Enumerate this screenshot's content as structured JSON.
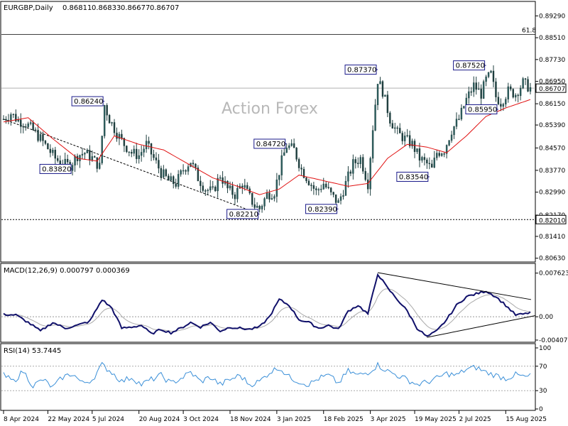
{
  "chart_data": {
    "type": "candlestick",
    "main": {
      "symbol_header": "EURGBP,Daily",
      "ohlc_header": [
        "0.86811",
        "0.86833",
        "0.86677",
        "0.86707"
      ],
      "current_price": "0.86707",
      "watermark": "Action Forex",
      "ylim": [
        0.8052,
        0.8935
      ],
      "y_ticks": [
        "0.89290",
        "0.88510",
        "0.87730",
        "0.86950",
        "0.86150",
        "0.85390",
        "0.84570",
        "0.83770",
        "0.82990",
        "0.82170",
        "0.81410",
        "0.80630"
      ],
      "fib_level": {
        "label": "61.8",
        "value": 0.8863
      },
      "support_level": {
        "label": "0.82010",
        "value": 0.8201
      },
      "annotations": [
        {
          "label": "0.86240",
          "value": 0.8624,
          "x": 41
        },
        {
          "label": "0.83820",
          "value": 0.8382,
          "x": 28
        },
        {
          "label": "0.84720",
          "value": 0.8472,
          "x": 115
        },
        {
          "label": "0.82210",
          "value": 0.8221,
          "x": 104
        },
        {
          "label": "0.87370",
          "value": 0.8737,
          "x": 152
        },
        {
          "label": "0.82390",
          "value": 0.8239,
          "x": 136
        },
        {
          "label": "0.83540",
          "value": 0.8354,
          "x": 173
        },
        {
          "label": "0.87520",
          "value": 0.8752,
          "x": 196
        },
        {
          "label": "0.85950",
          "value": 0.8595,
          "x": 201
        }
      ],
      "sma_label": "moving average",
      "trendline": {
        "from": {
          "x": 0,
          "value": 0.856
        },
        "to": {
          "x": 104,
          "value": 0.8221
        }
      }
    },
    "macd": {
      "header": "MACD(12,26,9) 0.000797 0.000369",
      "ylim": [
        -0.0042,
        0.0082
      ],
      "y_ticks": [
        "0.007623",
        "0.00",
        "-0.004073"
      ]
    },
    "rsi": {
      "header": "RSI(14) 53.7445",
      "ylim": [
        0,
        100
      ],
      "y_ticks": [
        "100",
        "70",
        "30",
        "0"
      ],
      "levels": [
        70,
        30
      ]
    },
    "x_ticks": [
      {
        "label": "8 Apr 2024",
        "x": 0
      },
      {
        "label": "22 May 2024",
        "x": 18
      },
      {
        "label": "5 Jul 2024",
        "x": 36
      },
      {
        "label": "20 Aug 2024",
        "x": 55
      },
      {
        "label": "3 Oct 2024",
        "x": 73
      },
      {
        "label": "18 Nov 2024",
        "x": 92
      },
      {
        "label": "3 Jan 2025",
        "x": 111
      },
      {
        "label": "18 Feb 2025",
        "x": 130
      },
      {
        "label": "3 Apr 2025",
        "x": 149
      },
      {
        "label": "19 May 2025",
        "x": 167
      },
      {
        "label": "2 Jul 2025",
        "x": 185
      },
      {
        "label": "15 Aug 2025",
        "x": 204
      }
    ],
    "close_anchors": [
      [
        0,
        0.856
      ],
      [
        3,
        0.858
      ],
      [
        6,
        0.8555
      ],
      [
        9,
        0.8545
      ],
      [
        12,
        0.852
      ],
      [
        15,
        0.849
      ],
      [
        18,
        0.8455
      ],
      [
        21,
        0.842
      ],
      [
        24,
        0.84
      ],
      [
        27,
        0.8395
      ],
      [
        30,
        0.843
      ],
      [
        33,
        0.844
      ],
      [
        36,
        0.842
      ],
      [
        39,
        0.839
      ],
      [
        41,
        0.861
      ],
      [
        43,
        0.856
      ],
      [
        46,
        0.851
      ],
      [
        49,
        0.847
      ],
      [
        52,
        0.844
      ],
      [
        55,
        0.843
      ],
      [
        58,
        0.847
      ],
      [
        61,
        0.842
      ],
      [
        64,
        0.837
      ],
      [
        67,
        0.834
      ],
      [
        70,
        0.833
      ],
      [
        73,
        0.838
      ],
      [
        76,
        0.841
      ],
      [
        79,
        0.835
      ],
      [
        82,
        0.831
      ],
      [
        85,
        0.83
      ],
      [
        88,
        0.836
      ],
      [
        91,
        0.831
      ],
      [
        94,
        0.829
      ],
      [
        97,
        0.833
      ],
      [
        100,
        0.828
      ],
      [
        102,
        0.825
      ],
      [
        104,
        0.824
      ],
      [
        107,
        0.829
      ],
      [
        110,
        0.83
      ],
      [
        113,
        0.841
      ],
      [
        115,
        0.8465
      ],
      [
        118,
        0.845
      ],
      [
        121,
        0.838
      ],
      [
        124,
        0.834
      ],
      [
        127,
        0.83
      ],
      [
        130,
        0.833
      ],
      [
        133,
        0.829
      ],
      [
        136,
        0.826
      ],
      [
        139,
        0.833
      ],
      [
        142,
        0.84
      ],
      [
        145,
        0.842
      ],
      [
        148,
        0.833
      ],
      [
        150,
        0.853
      ],
      [
        152,
        0.87
      ],
      [
        154,
        0.866
      ],
      [
        157,
        0.856
      ],
      [
        160,
        0.851
      ],
      [
        163,
        0.849
      ],
      [
        166,
        0.847
      ],
      [
        169,
        0.842
      ],
      [
        172,
        0.84
      ],
      [
        174,
        0.838
      ],
      [
        176,
        0.844
      ],
      [
        179,
        0.845
      ],
      [
        182,
        0.852
      ],
      [
        185,
        0.856
      ],
      [
        188,
        0.863
      ],
      [
        191,
        0.868
      ],
      [
        194,
        0.865
      ],
      [
        196,
        0.87
      ],
      [
        198,
        0.872
      ],
      [
        200,
        0.864
      ],
      [
        202,
        0.862
      ],
      [
        205,
        0.866
      ],
      [
        208,
        0.865
      ],
      [
        211,
        0.869
      ],
      [
        214,
        0.867
      ]
    ],
    "sma_anchors": [
      [
        0,
        0.855
      ],
      [
        10,
        0.8565
      ],
      [
        20,
        0.849
      ],
      [
        30,
        0.842
      ],
      [
        38,
        0.841
      ],
      [
        45,
        0.85
      ],
      [
        55,
        0.847
      ],
      [
        65,
        0.845
      ],
      [
        75,
        0.84
      ],
      [
        85,
        0.835
      ],
      [
        95,
        0.832
      ],
      [
        104,
        0.829
      ],
      [
        112,
        0.831
      ],
      [
        120,
        0.836
      ],
      [
        130,
        0.834
      ],
      [
        140,
        0.832
      ],
      [
        148,
        0.833
      ],
      [
        156,
        0.842
      ],
      [
        164,
        0.847
      ],
      [
        172,
        0.846
      ],
      [
        180,
        0.844
      ],
      [
        188,
        0.85
      ],
      [
        196,
        0.857
      ],
      [
        204,
        0.86
      ],
      [
        214,
        0.863
      ]
    ],
    "macd_anchors": [
      [
        0,
        0.0004
      ],
      [
        5,
        0.0003
      ],
      [
        10,
        -0.001
      ],
      [
        15,
        -0.0025
      ],
      [
        20,
        -0.001
      ],
      [
        25,
        -0.002
      ],
      [
        30,
        -0.0015
      ],
      [
        35,
        -0.0008
      ],
      [
        40,
        0.003
      ],
      [
        44,
        0.0015
      ],
      [
        48,
        -0.002
      ],
      [
        52,
        -0.0018
      ],
      [
        56,
        -0.0015
      ],
      [
        60,
        -0.003
      ],
      [
        64,
        -0.0022
      ],
      [
        68,
        -0.0028
      ],
      [
        72,
        -0.002
      ],
      [
        76,
        -0.001
      ],
      [
        80,
        -0.0018
      ],
      [
        84,
        -0.001
      ],
      [
        88,
        -0.0025
      ],
      [
        92,
        -0.0018
      ],
      [
        96,
        -0.002
      ],
      [
        100,
        -0.0022
      ],
      [
        104,
        -0.0018
      ],
      [
        108,
        0.0
      ],
      [
        112,
        0.003
      ],
      [
        116,
        0.002
      ],
      [
        120,
        -0.0005
      ],
      [
        124,
        -0.001
      ],
      [
        128,
        -0.002
      ],
      [
        132,
        -0.0015
      ],
      [
        136,
        -0.0022
      ],
      [
        140,
        0.001
      ],
      [
        144,
        0.002
      ],
      [
        148,
        0.0005
      ],
      [
        152,
        0.0075
      ],
      [
        156,
        0.005
      ],
      [
        160,
        0.003
      ],
      [
        164,
        0.001
      ],
      [
        168,
        -0.002
      ],
      [
        172,
        -0.0035
      ],
      [
        176,
        -0.0025
      ],
      [
        180,
        -0.0005
      ],
      [
        184,
        0.002
      ],
      [
        188,
        0.0035
      ],
      [
        192,
        0.004
      ],
      [
        196,
        0.0045
      ],
      [
        200,
        0.0035
      ],
      [
        204,
        0.002
      ],
      [
        208,
        0.0003
      ],
      [
        212,
        0.0005
      ],
      [
        214,
        0.0008
      ]
    ],
    "rsi_anchors": [
      [
        0,
        55
      ],
      [
        4,
        45
      ],
      [
        8,
        62
      ],
      [
        12,
        38
      ],
      [
        16,
        48
      ],
      [
        20,
        35
      ],
      [
        24,
        52
      ],
      [
        28,
        58
      ],
      [
        32,
        42
      ],
      [
        36,
        48
      ],
      [
        40,
        72
      ],
      [
        44,
        60
      ],
      [
        48,
        45
      ],
      [
        52,
        52
      ],
      [
        56,
        40
      ],
      [
        60,
        48
      ],
      [
        64,
        55
      ],
      [
        68,
        42
      ],
      [
        72,
        50
      ],
      [
        76,
        60
      ],
      [
        80,
        45
      ],
      [
        84,
        52
      ],
      [
        88,
        40
      ],
      [
        92,
        48
      ],
      [
        96,
        55
      ],
      [
        100,
        40
      ],
      [
        104,
        45
      ],
      [
        108,
        60
      ],
      [
        112,
        68
      ],
      [
        116,
        52
      ],
      [
        120,
        45
      ],
      [
        124,
        40
      ],
      [
        128,
        50
      ],
      [
        132,
        55
      ],
      [
        136,
        42
      ],
      [
        140,
        62
      ],
      [
        144,
        55
      ],
      [
        148,
        60
      ],
      [
        152,
        72
      ],
      [
        156,
        62
      ],
      [
        160,
        55
      ],
      [
        164,
        48
      ],
      [
        168,
        40
      ],
      [
        172,
        44
      ],
      [
        176,
        50
      ],
      [
        180,
        58
      ],
      [
        184,
        55
      ],
      [
        188,
        65
      ],
      [
        192,
        68
      ],
      [
        196,
        60
      ],
      [
        200,
        55
      ],
      [
        204,
        50
      ],
      [
        208,
        56
      ],
      [
        212,
        52
      ],
      [
        214,
        54
      ]
    ]
  }
}
